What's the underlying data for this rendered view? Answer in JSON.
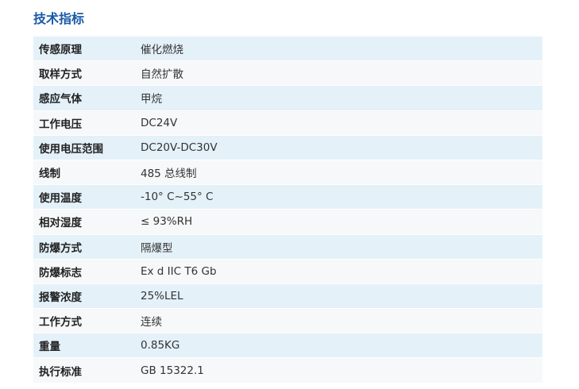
{
  "header": {
    "title": "技术指标"
  },
  "table": {
    "rows": [
      [
        "传感原理",
        "催化燃烧"
      ],
      [
        "取样方式",
        "自然扩散"
      ],
      [
        "感应气体",
        "甲烷"
      ],
      [
        "工作电压",
        "DC24V"
      ],
      [
        "使用电压范围",
        "DC20V-DC30V"
      ],
      [
        "线制",
        "485 总线制"
      ],
      [
        "使用温度",
        "-10° C~55° C"
      ],
      [
        "相对湿度",
        "≤ 93%RH"
      ],
      [
        "防爆方式",
        "隔爆型"
      ],
      [
        "防爆标志",
        "Ex d IIC T6 Gb"
      ],
      [
        "报警浓度",
        "25%LEL"
      ],
      [
        "工作方式",
        "连续"
      ],
      [
        "重量",
        "0.85KG"
      ],
      [
        "执行标准",
        "GB 15322.1"
      ]
    ]
  }
}
